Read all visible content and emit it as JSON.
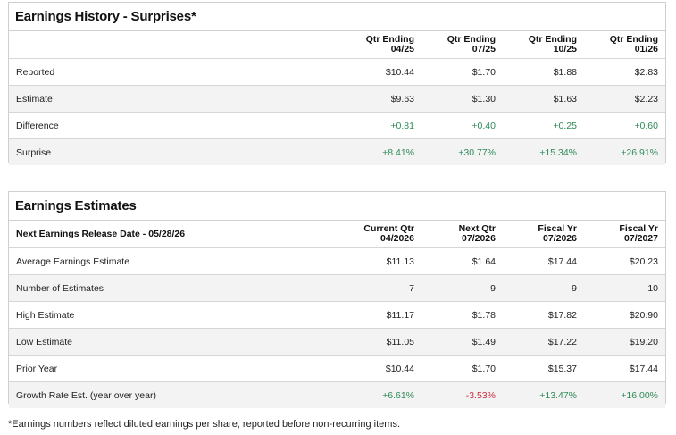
{
  "history": {
    "title": "Earnings History - Surprises*",
    "columns": [
      {
        "l1": "Qtr Ending",
        "l2": "04/25"
      },
      {
        "l1": "Qtr Ending",
        "l2": "07/25"
      },
      {
        "l1": "Qtr Ending",
        "l2": "10/25"
      },
      {
        "l1": "Qtr Ending",
        "l2": "01/26"
      }
    ],
    "rows": [
      {
        "label": "Reported",
        "values": [
          "$10.44",
          "$1.70",
          "$1.88",
          "$2.83"
        ]
      },
      {
        "label": "Estimate",
        "values": [
          "$9.63",
          "$1.30",
          "$1.63",
          "$2.23"
        ]
      },
      {
        "label": "Difference",
        "values": [
          "+0.81",
          "+0.40",
          "+0.25",
          "+0.60"
        ]
      },
      {
        "label": "Surprise",
        "values": [
          "+8.41%",
          "+30.77%",
          "+15.34%",
          "+26.91%"
        ]
      }
    ]
  },
  "estimates": {
    "title": "Earnings Estimates",
    "header_label": "Next Earnings Release Date - 05/28/26",
    "columns": [
      {
        "l1": "Current Qtr",
        "l2": "04/2026"
      },
      {
        "l1": "Next Qtr",
        "l2": "07/2026"
      },
      {
        "l1": "Fiscal Yr",
        "l2": "07/2026"
      },
      {
        "l1": "Fiscal Yr",
        "l2": "07/2027"
      }
    ],
    "rows": [
      {
        "label": "Average Earnings Estimate",
        "values": [
          "$11.13",
          "$1.64",
          "$17.44",
          "$20.23"
        ]
      },
      {
        "label": "Number of Estimates",
        "values": [
          "7",
          "9",
          "9",
          "10"
        ]
      },
      {
        "label": "High Estimate",
        "values": [
          "$11.17",
          "$1.78",
          "$17.82",
          "$20.90"
        ]
      },
      {
        "label": "Low Estimate",
        "values": [
          "$11.05",
          "$1.49",
          "$17.22",
          "$19.20"
        ]
      },
      {
        "label": "Prior Year",
        "values": [
          "$10.44",
          "$1.70",
          "$15.37",
          "$17.44"
        ]
      },
      {
        "label": "Growth Rate Est. (year over year)",
        "values": [
          "+6.61%",
          "-3.53%",
          "+13.47%",
          "+16.00%"
        ]
      }
    ]
  },
  "footnote": "*Earnings numbers reflect diluted earnings per share, reported before non-recurring items.",
  "colors": {
    "positive": "#2e8b57",
    "negative": "#cc2a3b"
  }
}
